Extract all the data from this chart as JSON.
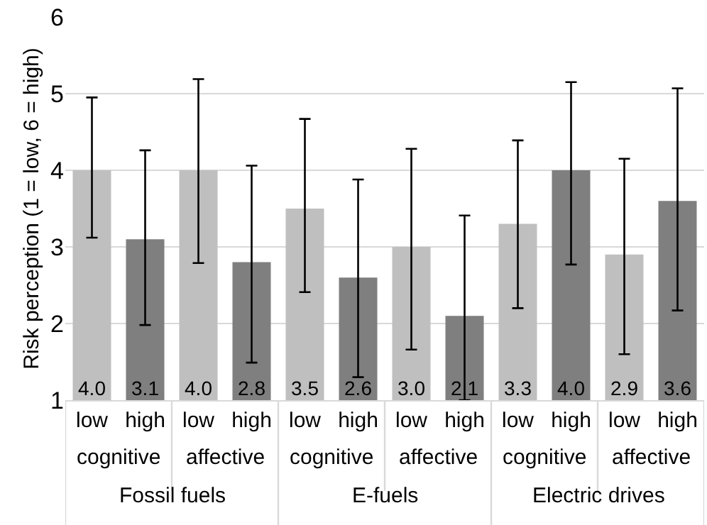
{
  "chart_data": {
    "type": "bar",
    "ylabel": "Risk perception (1 = low, 6 = high)",
    "categories": [
      "low",
      "high",
      "low",
      "high",
      "low",
      "high",
      "low",
      "high",
      "low",
      "high",
      "low",
      "high"
    ],
    "values": [
      4.0,
      3.1,
      4.0,
      2.8,
      3.5,
      2.6,
      3.0,
      2.1,
      3.3,
      4.0,
      2.9,
      3.6
    ],
    "colors": [
      "#bfbfbf",
      "#7f7f7f",
      "#bfbfbf",
      "#7f7f7f",
      "#bfbfbf",
      "#7f7f7f",
      "#bfbfbf",
      "#7f7f7f",
      "#bfbfbf",
      "#7f7f7f",
      "#bfbfbf",
      "#7f7f7f"
    ],
    "errors": [
      [
        3.12,
        4.95
      ],
      [
        1.98,
        4.26
      ],
      [
        2.79,
        5.19
      ],
      [
        1.49,
        4.06
      ],
      [
        2.41,
        4.67
      ],
      [
        1.3,
        3.88
      ],
      [
        1.66,
        4.28
      ],
      [
        1.0,
        3.41
      ],
      [
        2.2,
        4.39
      ],
      [
        2.77,
        5.15
      ],
      [
        1.6,
        4.15
      ],
      [
        2.17,
        5.07
      ]
    ],
    "value_labels": [
      "4.0",
      "3.1",
      "4.0",
      "2.8",
      "3.5",
      "2.6",
      "3.0",
      "2.1",
      "3.3",
      "4.0",
      "2.9",
      "3.6"
    ],
    "ylim": [
      1,
      6
    ],
    "yticks": [
      1,
      2,
      3,
      4,
      5,
      6
    ],
    "grid": "y",
    "annotations": [
      "cognitive",
      "affective",
      "cognitive",
      "affective",
      "cognitive",
      "affective",
      "Fossil fuels",
      "E-fuels",
      "Electric drives"
    ]
  }
}
